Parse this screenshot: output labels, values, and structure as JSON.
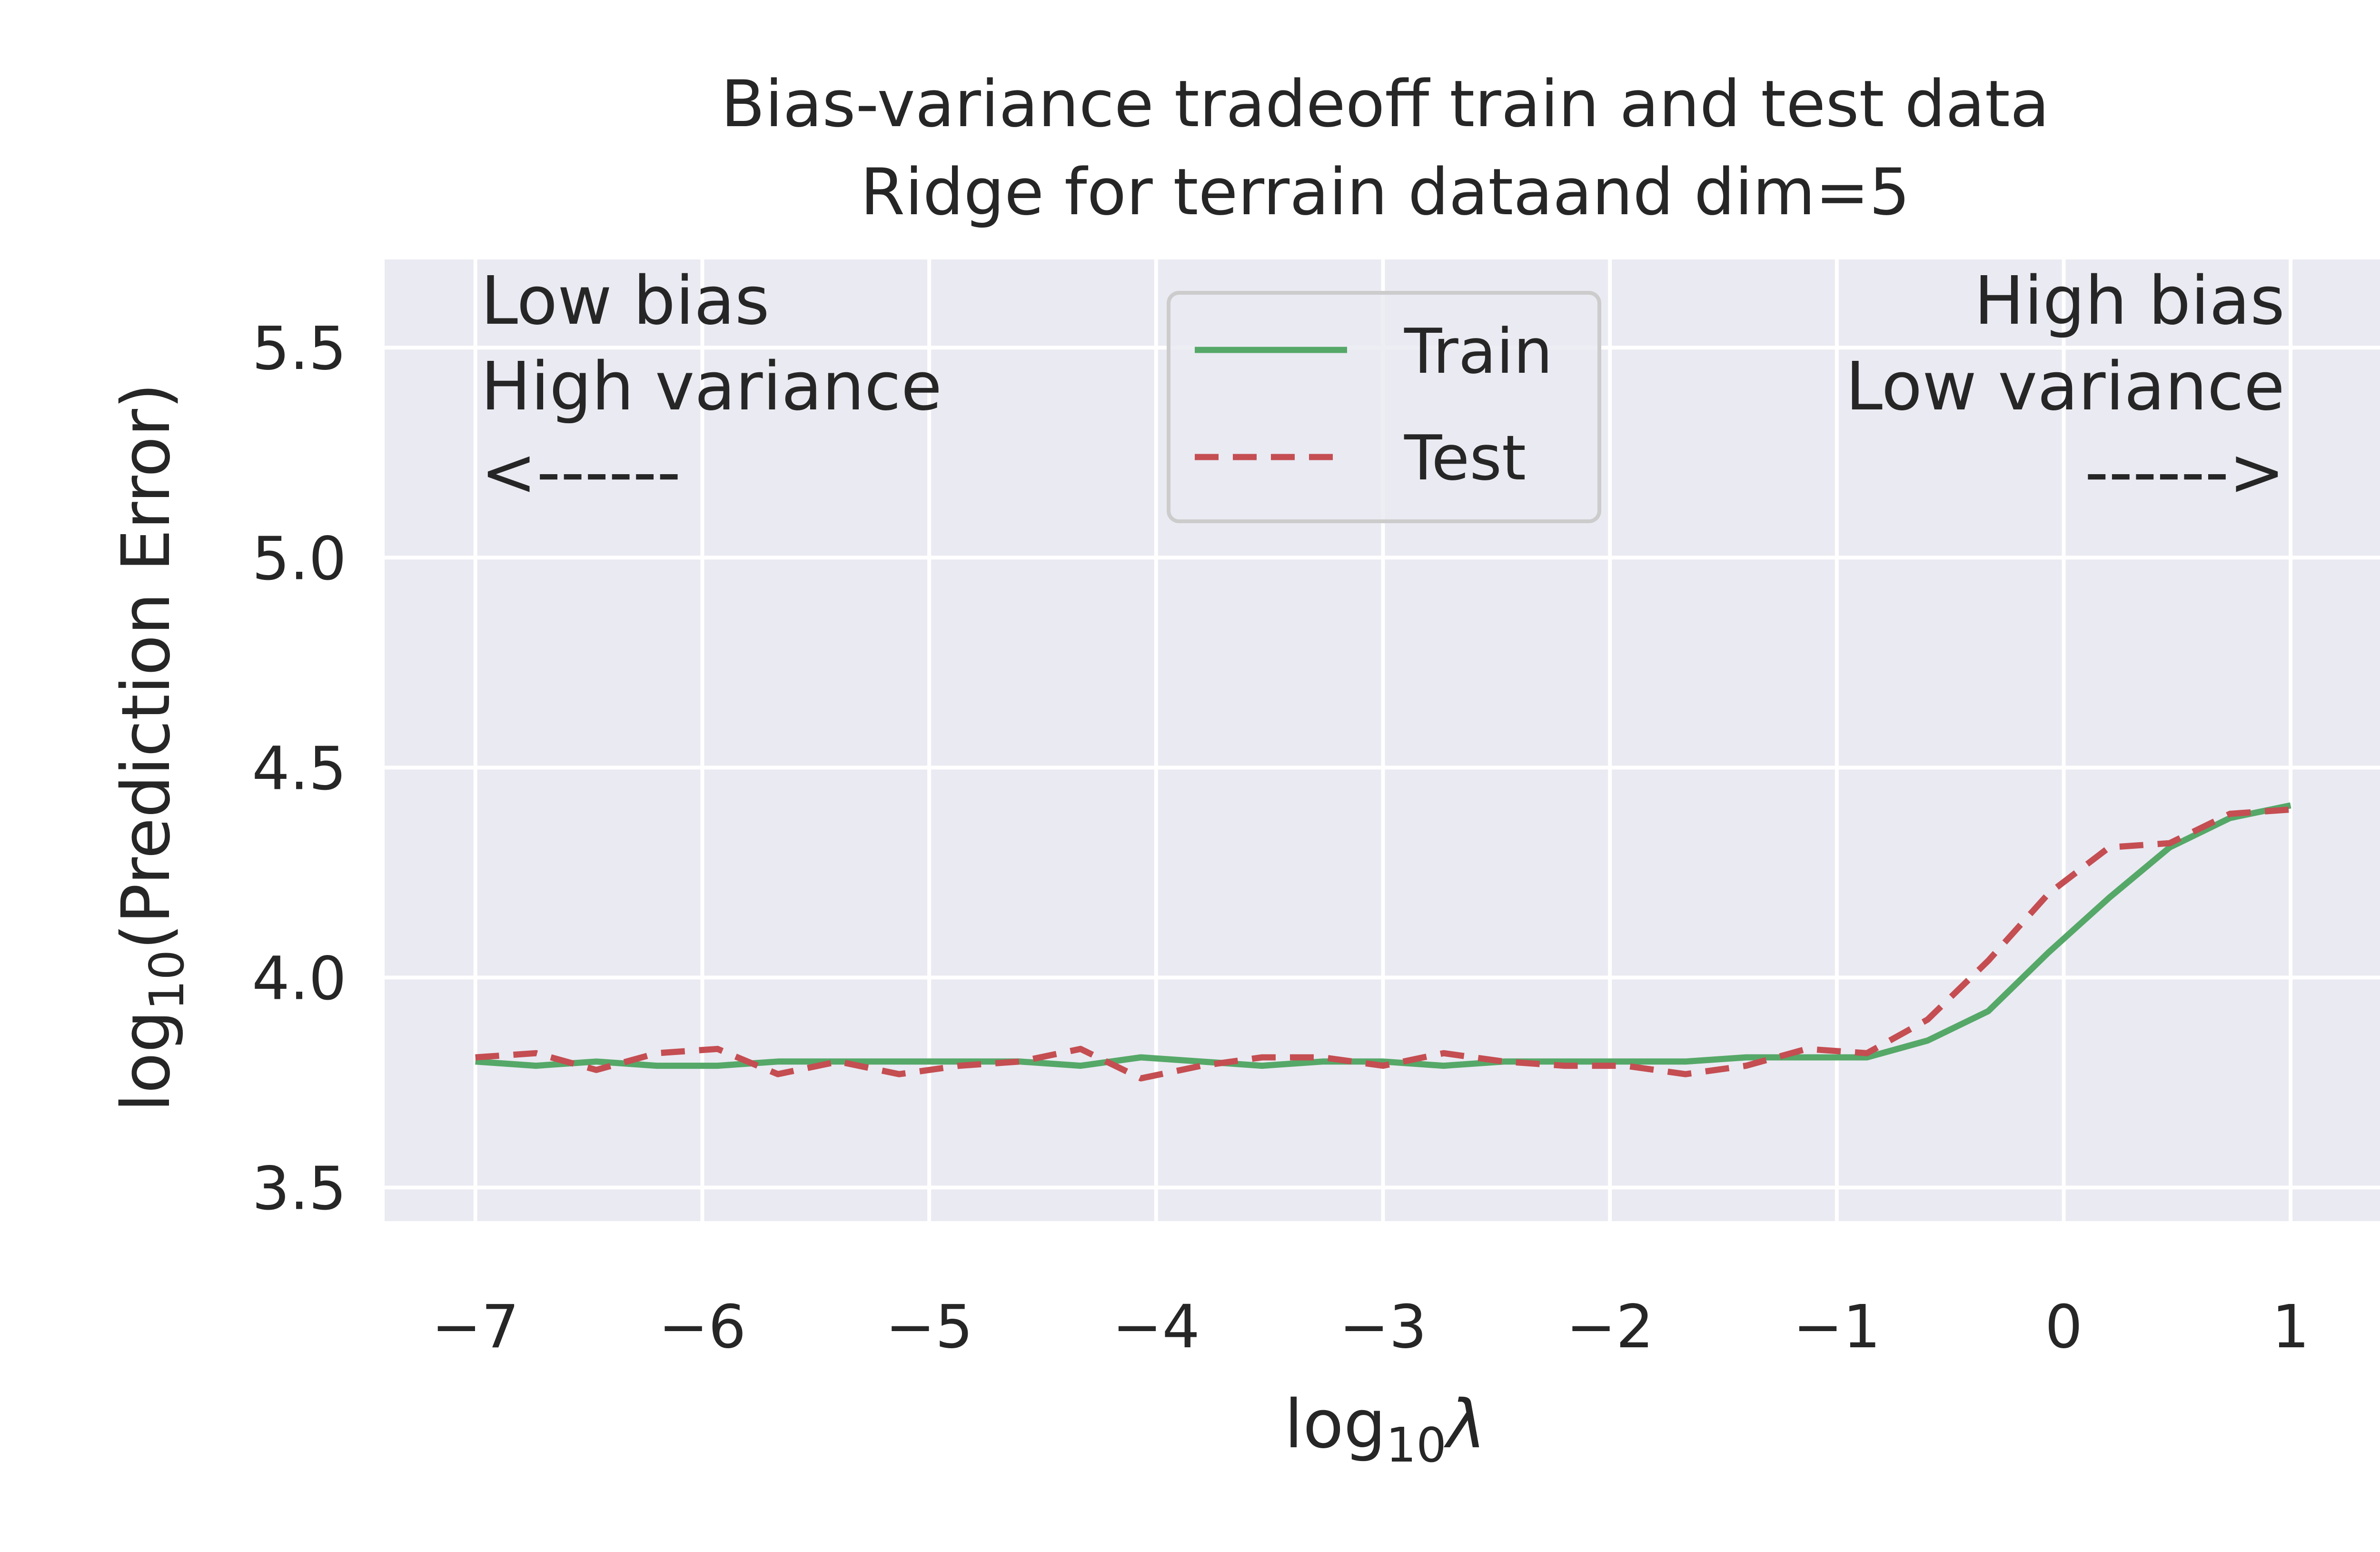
{
  "chart_data": {
    "type": "line",
    "title_lines": [
      "Bias-variance tradeoff train and test data",
      "Ridge for terrain dataand dim=5"
    ],
    "xlabel": {
      "prefix": "log",
      "sub": "10",
      "suffix": "λ"
    },
    "ylabel": {
      "prefix": "log",
      "sub": "10",
      "suffix": "(Prediction Error)"
    },
    "xlim": [
      -7.4,
      1.4
    ],
    "ylim": [
      3.42,
      5.71
    ],
    "x_ticks": [
      -7,
      -6,
      -5,
      -4,
      -3,
      -2,
      -1,
      0,
      1
    ],
    "x_tick_labels": [
      "−7",
      "−6",
      "−5",
      "−4",
      "−3",
      "−2",
      "−1",
      "0",
      "1"
    ],
    "y_ticks": [
      3.5,
      4.0,
      4.5,
      5.0,
      5.5
    ],
    "y_tick_labels": [
      "3.5",
      "4.0",
      "4.5",
      "5.0",
      "5.5"
    ],
    "grid": true,
    "legend_placement": "upper-center",
    "annotations": {
      "left": [
        "Low bias",
        "High variance",
        "<------"
      ],
      "right": [
        "High bias",
        "Low variance",
        "------>"
      ]
    },
    "x": [
      -7.0,
      -6.733,
      -6.467,
      -6.2,
      -5.933,
      -5.667,
      -5.4,
      -5.133,
      -4.867,
      -4.6,
      -4.333,
      -4.067,
      -3.8,
      -3.533,
      -3.267,
      -3.0,
      -2.733,
      -2.467,
      -2.2,
      -1.933,
      -1.667,
      -1.4,
      -1.133,
      -0.867,
      -0.6,
      -0.333,
      -0.067,
      0.2,
      0.467,
      0.733,
      1.0
    ],
    "series": [
      {
        "name": "Train",
        "color": "#55a868",
        "style": "solid",
        "values": [
          3.8,
          3.79,
          3.8,
          3.79,
          3.79,
          3.8,
          3.8,
          3.8,
          3.8,
          3.8,
          3.79,
          3.81,
          3.8,
          3.79,
          3.8,
          3.8,
          3.79,
          3.8,
          3.8,
          3.8,
          3.8,
          3.81,
          3.81,
          3.81,
          3.85,
          3.92,
          4.06,
          4.19,
          4.31,
          4.38,
          4.41
        ]
      },
      {
        "name": "Test",
        "color": "#c44e52",
        "style": "dashed",
        "values": [
          3.81,
          3.82,
          3.78,
          3.82,
          3.83,
          3.77,
          3.8,
          3.77,
          3.79,
          3.8,
          3.83,
          3.76,
          3.79,
          3.81,
          3.81,
          3.79,
          3.82,
          3.8,
          3.79,
          3.79,
          3.77,
          3.79,
          3.83,
          3.82,
          3.9,
          4.04,
          4.2,
          4.31,
          4.32,
          4.39,
          4.4
        ]
      }
    ],
    "colors": {
      "axes_background": "#eaeaf2",
      "grid": "#ffffff",
      "text": "#262626"
    }
  }
}
